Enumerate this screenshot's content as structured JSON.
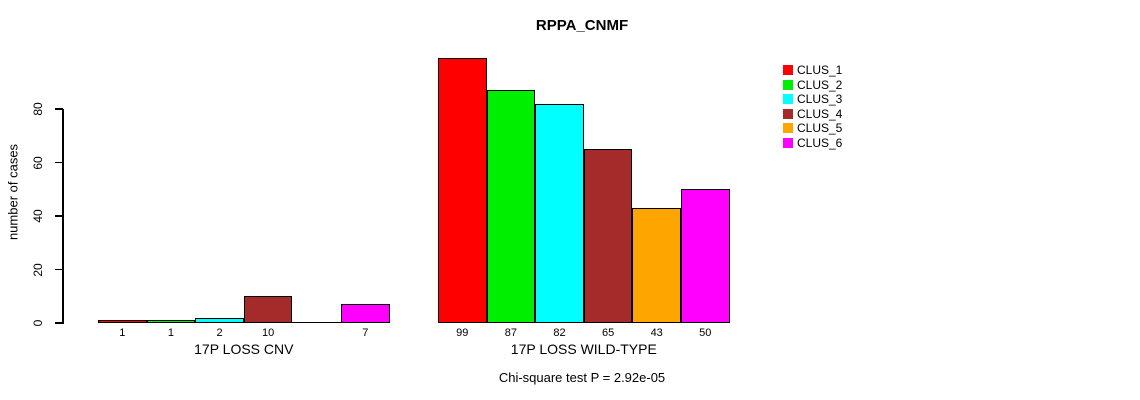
{
  "chart_data": {
    "type": "bar",
    "title": "RPPA_CNMF",
    "ylabel": "number of cases",
    "xlabel": "",
    "yticks": [
      0,
      20,
      40,
      60,
      80
    ],
    "ylim": [
      0,
      99
    ],
    "grid": false,
    "legend_position": "topright",
    "legend": [
      {
        "label": "CLUS_1",
        "color": "#FF0000"
      },
      {
        "label": "CLUS_2",
        "color": "#00EE00"
      },
      {
        "label": "CLUS_3",
        "color": "#00FFFF"
      },
      {
        "label": "CLUS_4",
        "color": "#A52A2A"
      },
      {
        "label": "CLUS_5",
        "color": "#FFA500"
      },
      {
        "label": "CLUS_6",
        "color": "#FF00FF"
      }
    ],
    "categories": [
      "CLUS_1",
      "CLUS_2",
      "CLUS_3",
      "CLUS_4",
      "CLUS_5",
      "CLUS_6"
    ],
    "groups": [
      {
        "label": "17P LOSS CNV",
        "values": [
          1,
          1,
          2,
          10,
          0,
          7
        ]
      },
      {
        "label": "17P LOSS WILD-TYPE",
        "values": [
          99,
          87,
          82,
          65,
          43,
          50
        ]
      }
    ],
    "annotation": "Chi-square test P = 2.92e-05"
  }
}
